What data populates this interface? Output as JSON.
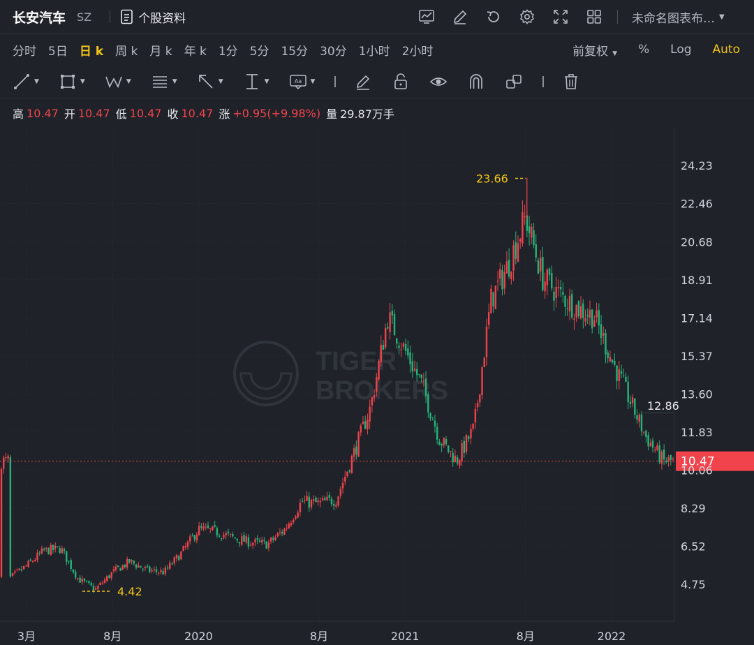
{
  "header": {
    "stock_name": "长安汽车",
    "market": "SZ",
    "info_label": "个股资料",
    "layout_name": "未命名图表布…",
    "icons": [
      "chart-indicator-icon",
      "draw-pen-icon",
      "refresh-icon",
      "gear-icon",
      "fullscreen-icon",
      "grid-layout-icon"
    ]
  },
  "periods": {
    "items": [
      "分时",
      "5日",
      "日 k",
      "周 k",
      "月 k",
      "年 k",
      "1分",
      "5分",
      "15分",
      "30分",
      "1小时",
      "2小时"
    ],
    "active": "日 k"
  },
  "options": {
    "adjust": "前复权",
    "percent": "%",
    "log": "Log",
    "auto": "Auto"
  },
  "tools": [
    "trend-line-icon",
    "rectangle-icon",
    "wave-pattern-icon",
    "fibonacci-icon",
    "arrow-icon",
    "measure-icon",
    "text-note-icon",
    "brush-icon",
    "lock-icon",
    "eye-icon",
    "magnet-icon",
    "group-objects-icon",
    "trash-icon"
  ],
  "ohlc": {
    "high_label": "高",
    "high": "10.47",
    "open_label": "开",
    "open": "10.47",
    "low_label": "低",
    "low": "10.47",
    "close_label": "收",
    "close": "10.47",
    "change_label": "涨",
    "change": "+0.95(+9.98%)",
    "volume_label": "量",
    "volume": "29.87万手"
  },
  "colors": {
    "up": "#f0434c",
    "down": "#26b37a",
    "accent": "#f5c518",
    "background": "#1f2329"
  },
  "watermark": {
    "line1": "TIGER",
    "line2": "BROKERS"
  },
  "chart_data": {
    "type": "candlestick",
    "title": "",
    "y_ticks": [
      "24.23",
      "22.46",
      "20.68",
      "18.91",
      "17.14",
      "15.37",
      "13.60",
      "11.83",
      "10.06",
      "8.29",
      "6.52",
      "4.75"
    ],
    "ylim": [
      3.5,
      25.8
    ],
    "x_ticks": [
      {
        "label": "3月",
        "date": "2019-03"
      },
      {
        "label": "8月",
        "date": "2019-08"
      },
      {
        "label": "2020",
        "date": "2020-01"
      },
      {
        "label": "8月",
        "date": "2020-08"
      },
      {
        "label": "2021",
        "date": "2021-01"
      },
      {
        "label": "8月",
        "date": "2021-08"
      },
      {
        "label": "2022",
        "date": "2022-01"
      }
    ],
    "x_range": [
      "2019-02",
      "2022-04"
    ],
    "high_marker": {
      "label": "23.66",
      "value": 23.66,
      "date": "2021-08"
    },
    "low_marker": {
      "label": "4.42",
      "value": 4.42,
      "date": "2019-06"
    },
    "reference_label": {
      "label": "12.86",
      "value": 12.86
    },
    "last_price": {
      "label": "10.47",
      "value": 10.47
    },
    "close_path": [
      [
        "2019-02",
        5.0
      ],
      [
        "2019-03",
        5.6
      ],
      [
        "2019-04",
        6.3
      ],
      [
        "2019-05",
        6.4
      ],
      [
        "2019-06",
        5.0
      ],
      [
        "2019-07",
        4.5
      ],
      [
        "2019-08",
        5.3
      ],
      [
        "2019-09",
        5.8
      ],
      [
        "2019-10",
        5.4
      ],
      [
        "2019-11",
        5.3
      ],
      [
        "2019-12",
        6.2
      ],
      [
        "2020-01",
        7.3
      ],
      [
        "2020-02",
        7.2
      ],
      [
        "2020-03",
        6.9
      ],
      [
        "2020-04",
        6.7
      ],
      [
        "2020-05",
        6.6
      ],
      [
        "2020-06",
        7.3
      ],
      [
        "2020-07",
        8.6
      ],
      [
        "2020-08",
        8.5
      ],
      [
        "2020-09",
        8.7
      ],
      [
        "2020-10",
        10.8
      ],
      [
        "2020-11",
        13.0
      ],
      [
        "2020-12",
        17.2
      ],
      [
        "2021-01",
        15.6
      ],
      [
        "2021-02",
        14.0
      ],
      [
        "2021-03",
        11.5
      ],
      [
        "2021-04",
        10.5
      ],
      [
        "2021-05",
        12.0
      ],
      [
        "2021-06",
        18.0
      ],
      [
        "2021-07",
        19.6
      ],
      [
        "2021-08",
        21.8
      ],
      [
        "2021-09",
        19.0
      ],
      [
        "2021-10",
        18.2
      ],
      [
        "2021-11",
        17.6
      ],
      [
        "2021-12",
        17.2
      ],
      [
        "2022-01",
        15.2
      ],
      [
        "2022-02",
        13.4
      ],
      [
        "2022-03",
        11.6
      ],
      [
        "2022-04",
        10.47
      ]
    ]
  }
}
